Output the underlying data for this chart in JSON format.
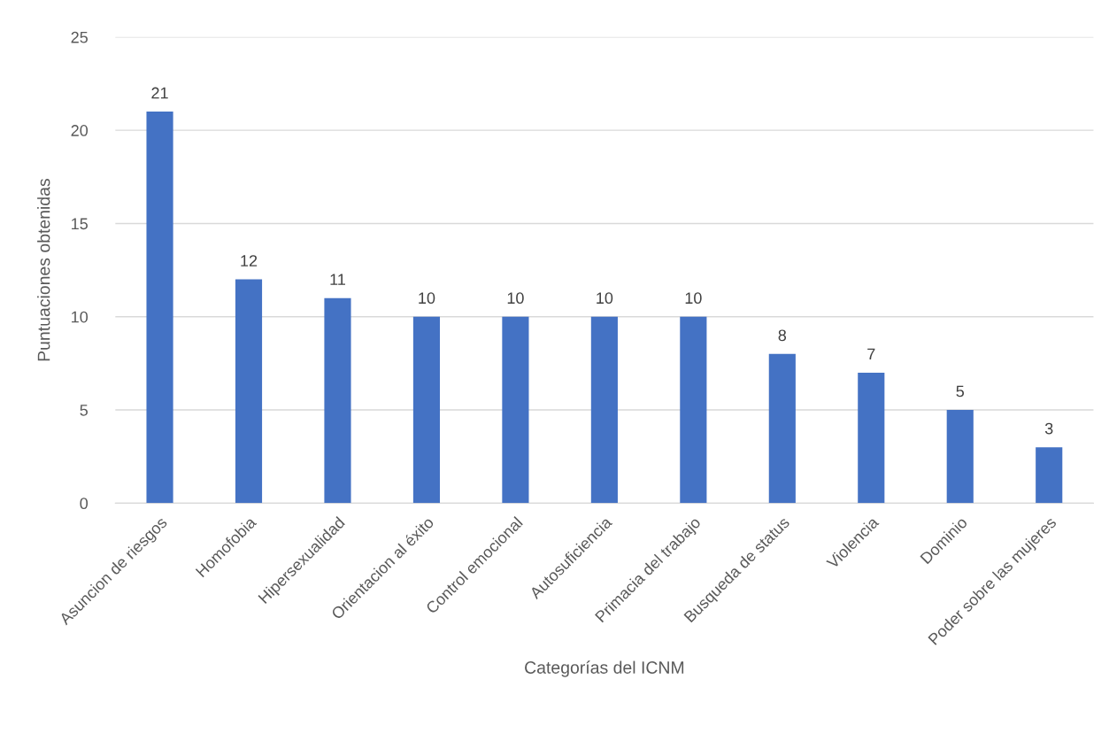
{
  "chart_data": {
    "type": "bar",
    "xlabel": "Categorías del ICNM",
    "ylabel": "Puntuaciones obtenidas",
    "categories": [
      "Asuncion de riesgos",
      "Homofobia",
      "Hipersexualidad",
      "Orientacion al éxito",
      "Control emocional",
      "Autosuficiencia",
      "Primacia del trabajo",
      "Busqueda de status",
      "Violencia",
      "Dominio",
      "Poder sobre las mujeres"
    ],
    "values": [
      21,
      12,
      11,
      10,
      10,
      10,
      10,
      8,
      7,
      5,
      3
    ],
    "color": "#4472c4",
    "ylim": [
      0,
      25
    ],
    "yticks": [
      0,
      5,
      10,
      15,
      20,
      25
    ],
    "grid": "y",
    "data_labels": true,
    "legend": false
  }
}
